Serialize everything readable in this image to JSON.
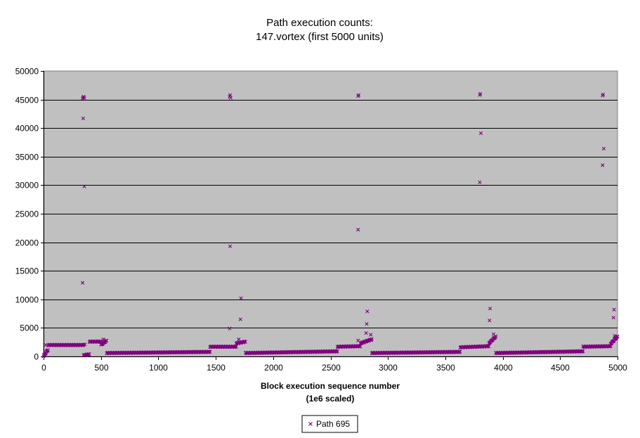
{
  "chart_data": {
    "type": "scatter",
    "title": "Path execution counts:",
    "subtitle": "147.vortex (first 5000 units)",
    "xlabel": "Block execution sequence number",
    "xlabel_line2": "(1e6 scaled)",
    "ylabel": "",
    "xlim": [
      0,
      5000
    ],
    "ylim": [
      0,
      50000
    ],
    "x_ticks": [
      0,
      500,
      1000,
      1500,
      2000,
      2500,
      3000,
      3500,
      4000,
      4500,
      5000
    ],
    "y_ticks": [
      0,
      5000,
      10000,
      15000,
      20000,
      25000,
      30000,
      35000,
      40000,
      45000,
      50000
    ],
    "grid": "horizontal",
    "legend_position": "bottom",
    "plot_background": "#c0c0c0",
    "series": [
      {
        "name": "Path 695",
        "color": "#800080",
        "marker": "x",
        "segments": [
          {
            "x_start": 0,
            "x_end": 40,
            "y_start": 100,
            "y_end": 1200
          },
          {
            "x_start": 40,
            "x_end": 350,
            "y_start": 2000,
            "y_end": 2000
          },
          {
            "x_start": 350,
            "x_end": 400,
            "y_start": 200,
            "y_end": 400
          },
          {
            "x_start": 400,
            "x_end": 500,
            "y_start": 2600,
            "y_end": 2600
          },
          {
            "x_start": 500,
            "x_end": 550,
            "y_start": 2000,
            "y_end": 2800
          },
          {
            "x_start": 550,
            "x_end": 1450,
            "y_start": 600,
            "y_end": 800
          },
          {
            "x_start": 1450,
            "x_end": 1680,
            "y_start": 1700,
            "y_end": 1700
          },
          {
            "x_start": 1680,
            "x_end": 1760,
            "y_start": 2300,
            "y_end": 2600
          },
          {
            "x_start": 1760,
            "x_end": 2560,
            "y_start": 600,
            "y_end": 900
          },
          {
            "x_start": 2560,
            "x_end": 2760,
            "y_start": 1700,
            "y_end": 1800
          },
          {
            "x_start": 2760,
            "x_end": 2860,
            "y_start": 2300,
            "y_end": 3000
          },
          {
            "x_start": 2860,
            "x_end": 3630,
            "y_start": 600,
            "y_end": 800
          },
          {
            "x_start": 3630,
            "x_end": 3880,
            "y_start": 1600,
            "y_end": 1800
          },
          {
            "x_start": 3880,
            "x_end": 3940,
            "y_start": 2300,
            "y_end": 3500
          },
          {
            "x_start": 3940,
            "x_end": 4700,
            "y_start": 600,
            "y_end": 900
          },
          {
            "x_start": 4700,
            "x_end": 4940,
            "y_start": 1700,
            "y_end": 1800
          },
          {
            "x_start": 4940,
            "x_end": 5000,
            "y_start": 2200,
            "y_end": 3500
          }
        ],
        "points": [
          [
            340,
            45200
          ],
          [
            345,
            45400
          ],
          [
            350,
            45500
          ],
          [
            355,
            45300
          ],
          [
            345,
            41700
          ],
          [
            355,
            29800
          ],
          [
            340,
            12900
          ],
          [
            1620,
            45500
          ],
          [
            1625,
            45800
          ],
          [
            1630,
            45300
          ],
          [
            1625,
            19300
          ],
          [
            1620,
            4900
          ],
          [
            1720,
            10200
          ],
          [
            1715,
            6500
          ],
          [
            2740,
            45600
          ],
          [
            2745,
            45800
          ],
          [
            2740,
            22200
          ],
          [
            2820,
            7900
          ],
          [
            2815,
            5700
          ],
          [
            2810,
            4100
          ],
          [
            2740,
            2800
          ],
          [
            3800,
            45800
          ],
          [
            3805,
            46000
          ],
          [
            3810,
            39100
          ],
          [
            3800,
            30500
          ],
          [
            3890,
            8400
          ],
          [
            3885,
            6300
          ],
          [
            4870,
            45700
          ],
          [
            4875,
            45900
          ],
          [
            4880,
            36400
          ],
          [
            4870,
            33500
          ],
          [
            4970,
            8200
          ],
          [
            4965,
            6800
          ],
          [
            4975,
            3600
          ],
          [
            20,
            2000
          ],
          [
            360,
            2100
          ],
          [
            520,
            3000
          ],
          [
            1700,
            3000
          ],
          [
            2850,
            3800
          ],
          [
            3920,
            3900
          ],
          [
            4990,
            3300
          ]
        ]
      }
    ]
  }
}
